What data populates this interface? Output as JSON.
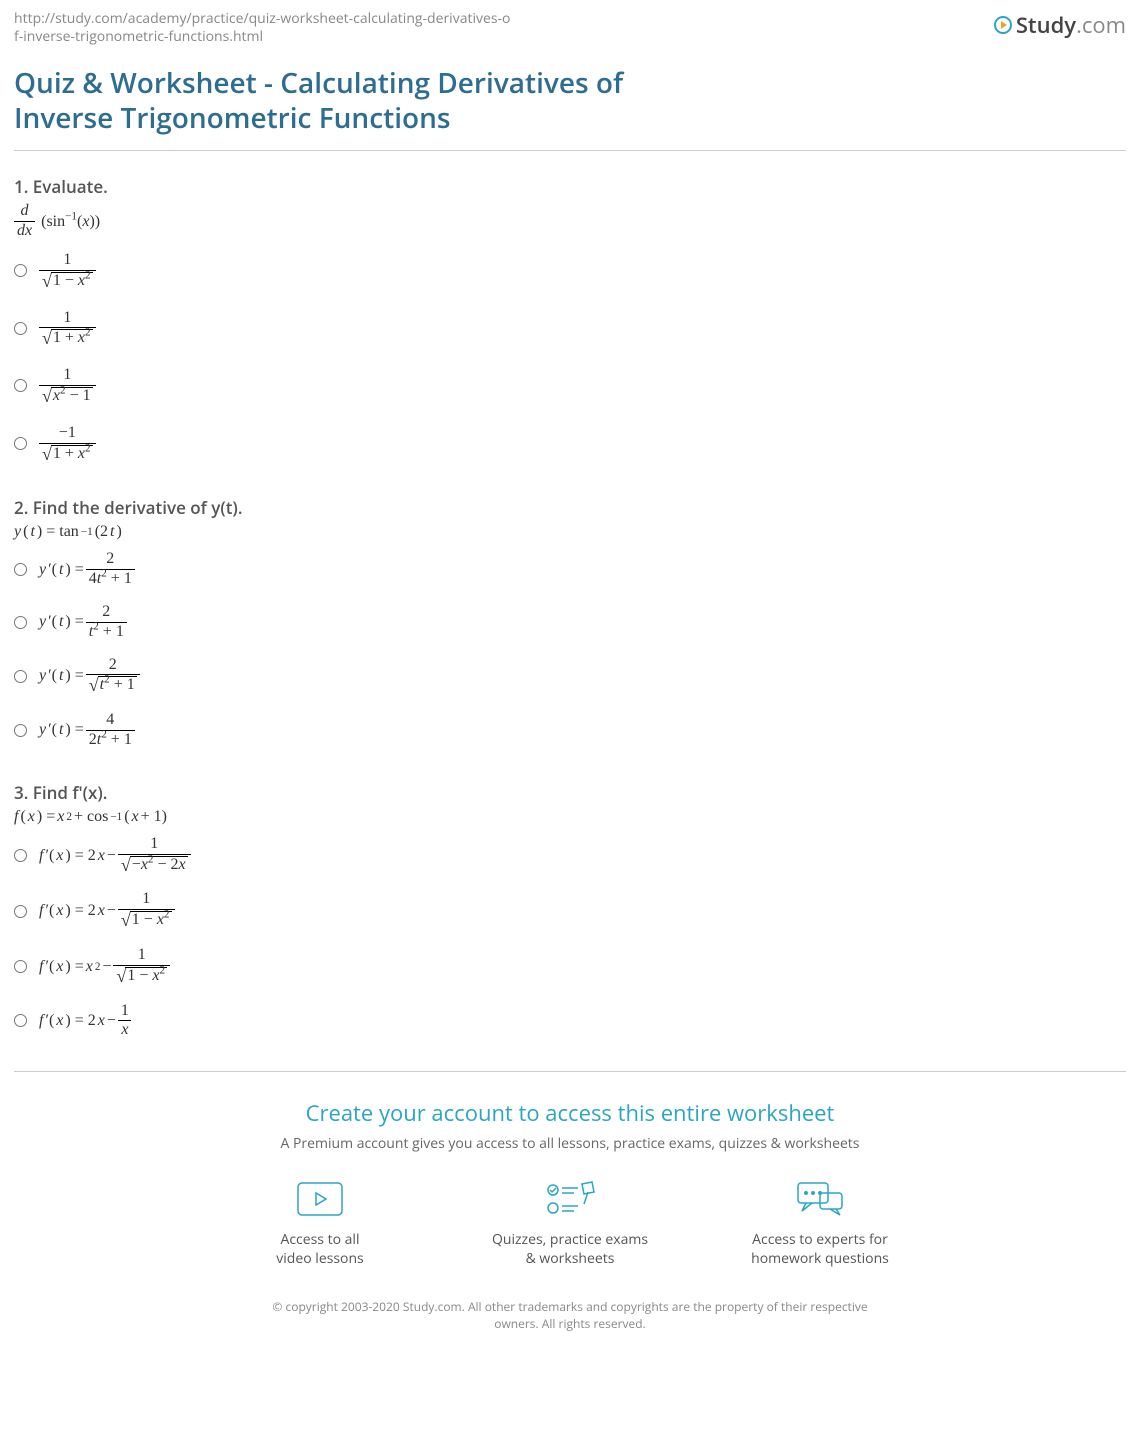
{
  "url": "http://study.com/academy/practice/quiz-worksheet-calculating-derivatives-of-inverse-trigonometric-functions.html",
  "brand": {
    "name": "Study",
    "suffix": ".com"
  },
  "colors": {
    "title": "#2e6d92",
    "accent": "#2aa6c4",
    "accent_orange": "#f7a11a",
    "text": "#333333",
    "muted": "#888888",
    "divider": "#cccccc",
    "background": "#ffffff"
  },
  "title": "Quiz & Worksheet - Calculating Derivatives of Inverse Trigonometric Functions",
  "questions": [
    {
      "number": "1.",
      "prompt": "Evaluate.",
      "stem": {
        "type": "deriv_arcsin",
        "display": "d/dx (sin^{-1}(x))"
      },
      "options": [
        {
          "type": "frac_sqrt",
          "num": "1",
          "under_sqrt": "1 − x²"
        },
        {
          "type": "frac_sqrt",
          "num": "1",
          "under_sqrt": "1 + x²"
        },
        {
          "type": "frac_sqrt",
          "num": "1",
          "under_sqrt": "x² − 1"
        },
        {
          "type": "frac_sqrt",
          "num": "−1",
          "under_sqrt": "1 + x²"
        }
      ]
    },
    {
      "number": "2.",
      "prompt": "Find the derivative of y(t).",
      "stem": {
        "type": "eq_arctan",
        "display": "y(t) = tan^{-1}(2t)"
      },
      "options": [
        {
          "type": "yprime_frac",
          "num": "2",
          "den": "4t² + 1"
        },
        {
          "type": "yprime_frac",
          "num": "2",
          "den": "t² + 1"
        },
        {
          "type": "yprime_frac_sqrt",
          "num": "2",
          "under_sqrt": "t² + 1"
        },
        {
          "type": "yprime_frac",
          "num": "4",
          "den": "2t² + 1"
        }
      ]
    },
    {
      "number": "3.",
      "prompt": "Find f'(x).",
      "stem": {
        "type": "eq_arccos",
        "display": "f(x) = x² + cos^{-1}(x + 1)"
      },
      "options": [
        {
          "type": "fprime_sqrt",
          "lead": "2x",
          "num": "1",
          "under_sqrt": "−x² − 2x"
        },
        {
          "type": "fprime_sqrt",
          "lead": "2x",
          "num": "1",
          "under_sqrt": "1 − x²"
        },
        {
          "type": "fprime_sqrt",
          "lead": "x²",
          "num": "1",
          "under_sqrt": "1 − x²"
        },
        {
          "type": "fprime_plain",
          "lead": "2x",
          "num": "1",
          "den": "x"
        }
      ]
    }
  ],
  "cta": {
    "title": "Create your account to access this entire worksheet",
    "subtitle": "A Premium account gives you access to all lessons, practice exams, quizzes & worksheets",
    "features": [
      {
        "icon": "video-play-icon",
        "line1": "Access to all",
        "line2": "video lessons"
      },
      {
        "icon": "quiz-check-icon",
        "line1": "Quizzes, practice exams",
        "line2": "& worksheets"
      },
      {
        "icon": "chat-expert-icon",
        "line1": "Access to experts for",
        "line2": "homework questions"
      }
    ]
  },
  "copyright": "© copyright 2003-2020 Study.com. All other trademarks and copyrights are the property of their respective owners. All rights reserved."
}
